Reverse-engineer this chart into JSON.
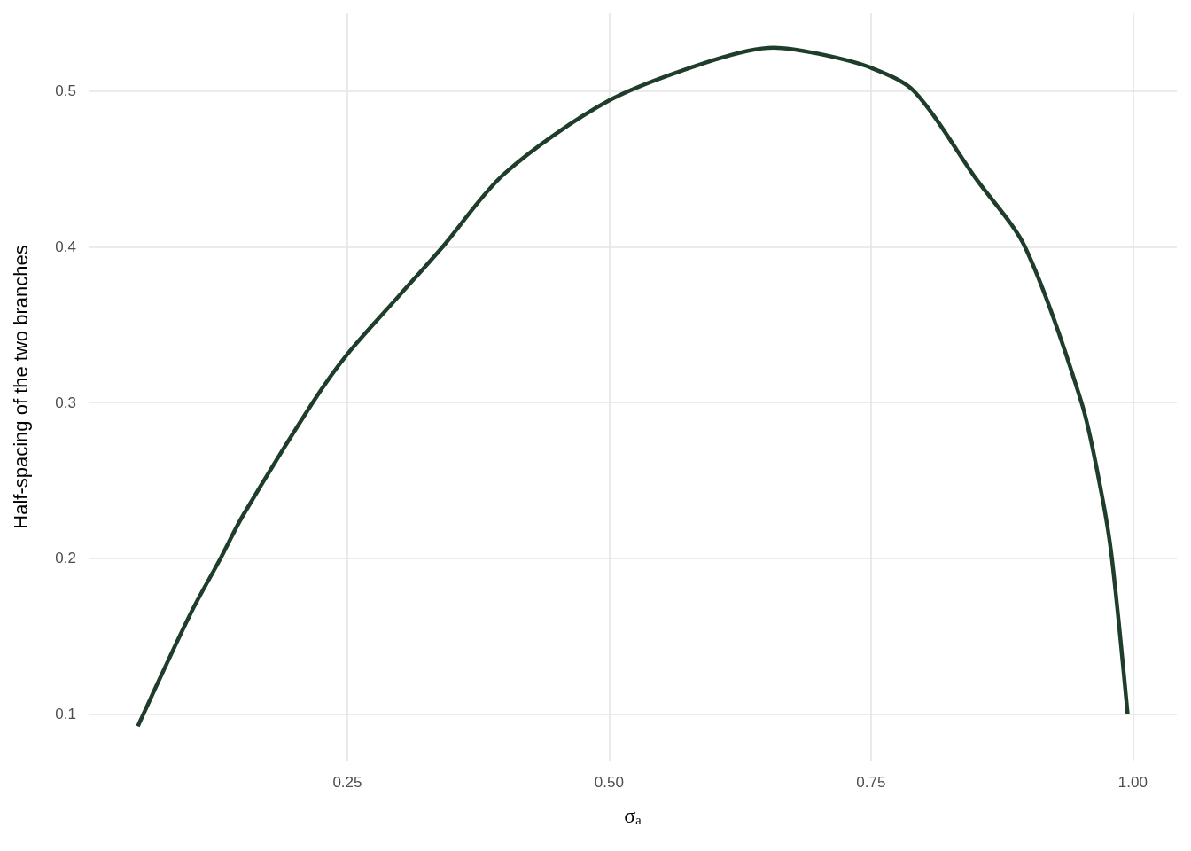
{
  "chart_data": {
    "type": "line",
    "xlabel": "σₐ",
    "ylabel": "Half-spacing of the two branches",
    "x": [
      0.05,
      0.1,
      0.129,
      0.15,
      0.217,
      0.25,
      0.3,
      0.341,
      0.4,
      0.5,
      0.6,
      0.657,
      0.7,
      0.75,
      0.791,
      0.85,
      0.897,
      0.951,
      0.97,
      0.98,
      0.995
    ],
    "series": [
      {
        "color": "#1f3d2b",
        "values": [
          0.092,
          0.164,
          0.2,
          0.227,
          0.3,
          0.331,
          0.369,
          0.4,
          0.447,
          0.494,
          0.52,
          0.528,
          0.524,
          0.515,
          0.5,
          0.444,
          0.4,
          0.3,
          0.242,
          0.2,
          0.1
        ]
      }
    ],
    "xlim": [
      0.003,
      1.042
    ],
    "ylim": [
      0.07,
      0.55
    ],
    "xticks": [
      0.25,
      {
        "value": 0.5,
        "label": "0.50"
      },
      0.75,
      {
        "value": 1,
        "label": "1.00"
      }
    ],
    "yticks": [
      0.1,
      0.2,
      0.3,
      0.4,
      0.5
    ],
    "grid": true,
    "marker": "none",
    "line_style": "solid"
  }
}
